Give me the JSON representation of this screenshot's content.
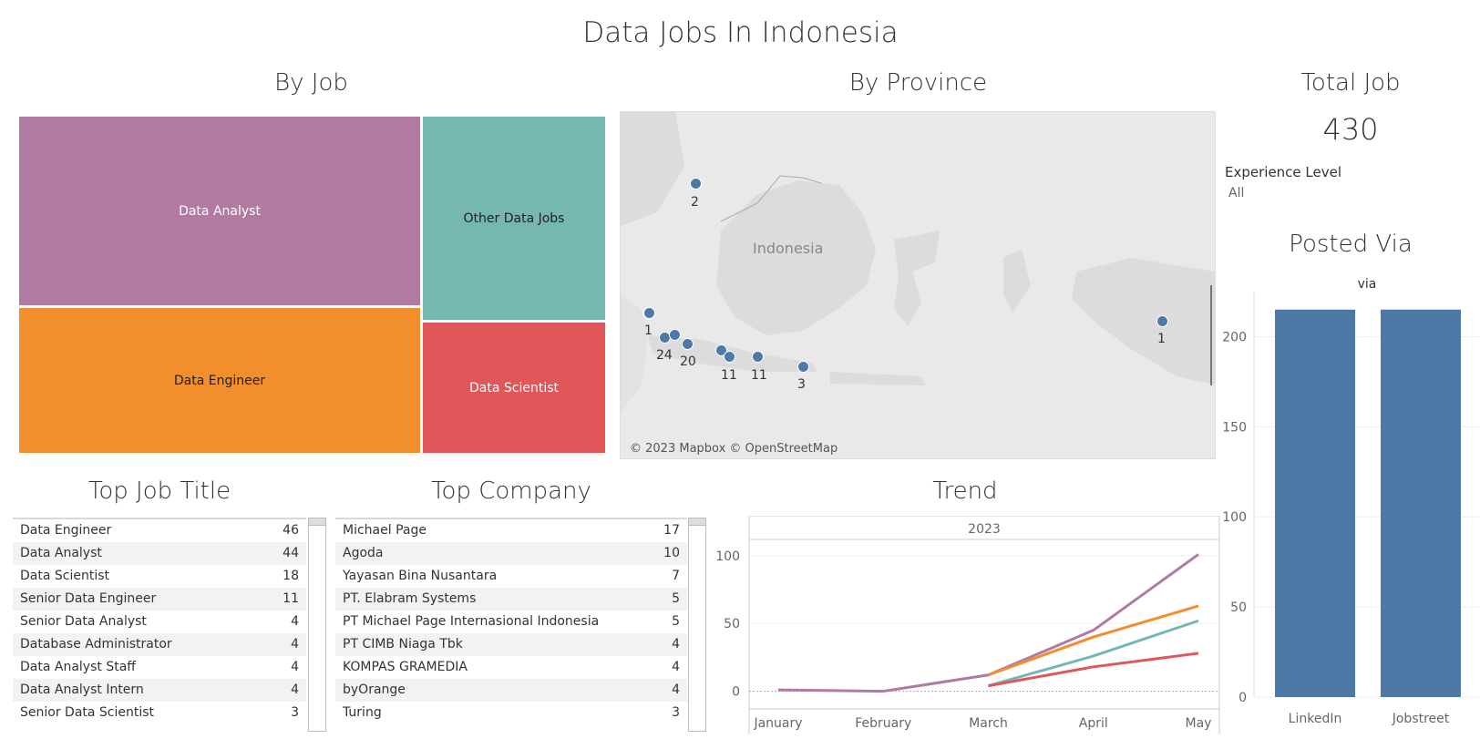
{
  "dashboard": {
    "title": "Data Jobs In Indonesia"
  },
  "by_job": {
    "title": "By Job",
    "cells": [
      {
        "label": "Data Analyst",
        "color": "#b07aa1",
        "text_color": "#ffffff"
      },
      {
        "label": "Other Data Jobs",
        "color": "#76b7b2",
        "text_color": "#222222"
      },
      {
        "label": "Data Engineer",
        "color": "#f28e2b",
        "text_color": "#222222"
      },
      {
        "label": "Data Scientist",
        "color": "#e15759",
        "text_color": "#ffffff"
      }
    ]
  },
  "by_province": {
    "title": "By Province",
    "country_label": "Indonesia",
    "attribution": "© 2023 Mapbox © OpenStreetMap",
    "dot_color": "#4e79a7",
    "points": [
      {
        "value": "2"
      },
      {
        "value": "1"
      },
      {
        "value": "24"
      },
      {
        "value": "20"
      },
      {
        "value": "11"
      },
      {
        "value": "11"
      },
      {
        "value": "3"
      },
      {
        "value": "1"
      }
    ]
  },
  "total_job": {
    "title": "Total Job",
    "value": "430",
    "filter_label": "Experience Level",
    "filter_value": "All"
  },
  "posted_via": {
    "title": "Posted Via",
    "header": "via",
    "bar_color": "#4e79a7",
    "bars": [
      {
        "label": "LinkedIn",
        "value": 215
      },
      {
        "label": "Jobstreet",
        "value": 215
      }
    ],
    "ticks": [
      "0",
      "50",
      "100",
      "150",
      "200"
    ],
    "ymax": 225
  },
  "top_job_title": {
    "title": "Top Job Title",
    "rows": [
      {
        "name": "Data Engineer",
        "count": "46"
      },
      {
        "name": "Data Analyst",
        "count": "44"
      },
      {
        "name": "Data Scientist",
        "count": "18"
      },
      {
        "name": "Senior Data Engineer",
        "count": "11"
      },
      {
        "name": "Senior Data Analyst",
        "count": "4"
      },
      {
        "name": "Database Administrator",
        "count": "4"
      },
      {
        "name": "Data Analyst Staff",
        "count": "4"
      },
      {
        "name": "Data Analyst Intern",
        "count": "4"
      },
      {
        "name": "Senior Data Scientist",
        "count": "3"
      }
    ]
  },
  "top_company": {
    "title": "Top Company",
    "rows": [
      {
        "name": "Michael Page",
        "count": "17"
      },
      {
        "name": "Agoda",
        "count": "10"
      },
      {
        "name": "Yayasan Bina Nusantara",
        "count": "7"
      },
      {
        "name": "PT. Elabram Systems",
        "count": "5"
      },
      {
        "name": "PT Michael Page Internasional Indonesia",
        "count": "5"
      },
      {
        "name": "PT CIMB Niaga Tbk",
        "count": "4"
      },
      {
        "name": "KOMPAS GRAMEDIA",
        "count": "4"
      },
      {
        "name": "byOrange",
        "count": "4"
      },
      {
        "name": "Turing",
        "count": "3"
      }
    ]
  },
  "trend": {
    "title": "Trend",
    "year": "2023",
    "months": [
      "January",
      "February",
      "March",
      "April",
      "May"
    ],
    "ticks": [
      "0",
      "50",
      "100"
    ],
    "ymin": -5,
    "ymax": 108,
    "series": [
      {
        "color": "#b07aa1",
        "points": [
          [
            0,
            1
          ],
          [
            1,
            0
          ],
          [
            2,
            12
          ],
          [
            3,
            45
          ],
          [
            4,
            101
          ]
        ]
      },
      {
        "color": "#f28e2b",
        "points": [
          [
            2,
            12
          ],
          [
            3,
            40
          ],
          [
            4,
            63
          ]
        ]
      },
      {
        "color": "#76b7b2",
        "points": [
          [
            2,
            4
          ],
          [
            3,
            26
          ],
          [
            4,
            52
          ]
        ]
      },
      {
        "color": "#e15759",
        "points": [
          [
            2,
            4
          ],
          [
            3,
            18
          ],
          [
            4,
            28
          ]
        ]
      }
    ]
  }
}
